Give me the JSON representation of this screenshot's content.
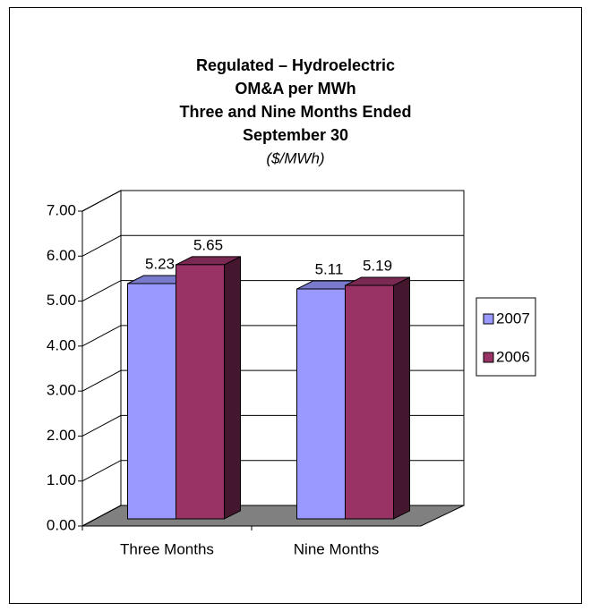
{
  "chart_data": {
    "type": "bar3d",
    "title": [
      "Regulated  –  Hydroelectric",
      "OM&A per MWh",
      "Three and Nine Months Ended",
      "September 30"
    ],
    "subtitle": "($/MWh)",
    "categories": [
      "Three Months",
      "Nine Months"
    ],
    "series": [
      {
        "name": "2007",
        "color": "#9999ff",
        "values": [
          5.23,
          5.11
        ]
      },
      {
        "name": "2006",
        "color": "#993366",
        "values": [
          5.65,
          5.19
        ]
      }
    ],
    "ylim": [
      0,
      7
    ],
    "yticks": [
      {
        "value": 0,
        "label": "0.00"
      },
      {
        "value": 1,
        "label": "1.00"
      },
      {
        "value": 2,
        "label": "2.00"
      },
      {
        "value": 3,
        "label": "3.00"
      },
      {
        "value": 4,
        "label": "4.00"
      },
      {
        "value": 5,
        "label": "5.00"
      },
      {
        "value": 6,
        "label": "6.00"
      },
      {
        "value": 7,
        "label": "7.00"
      }
    ],
    "grid": true,
    "legend": "right"
  }
}
